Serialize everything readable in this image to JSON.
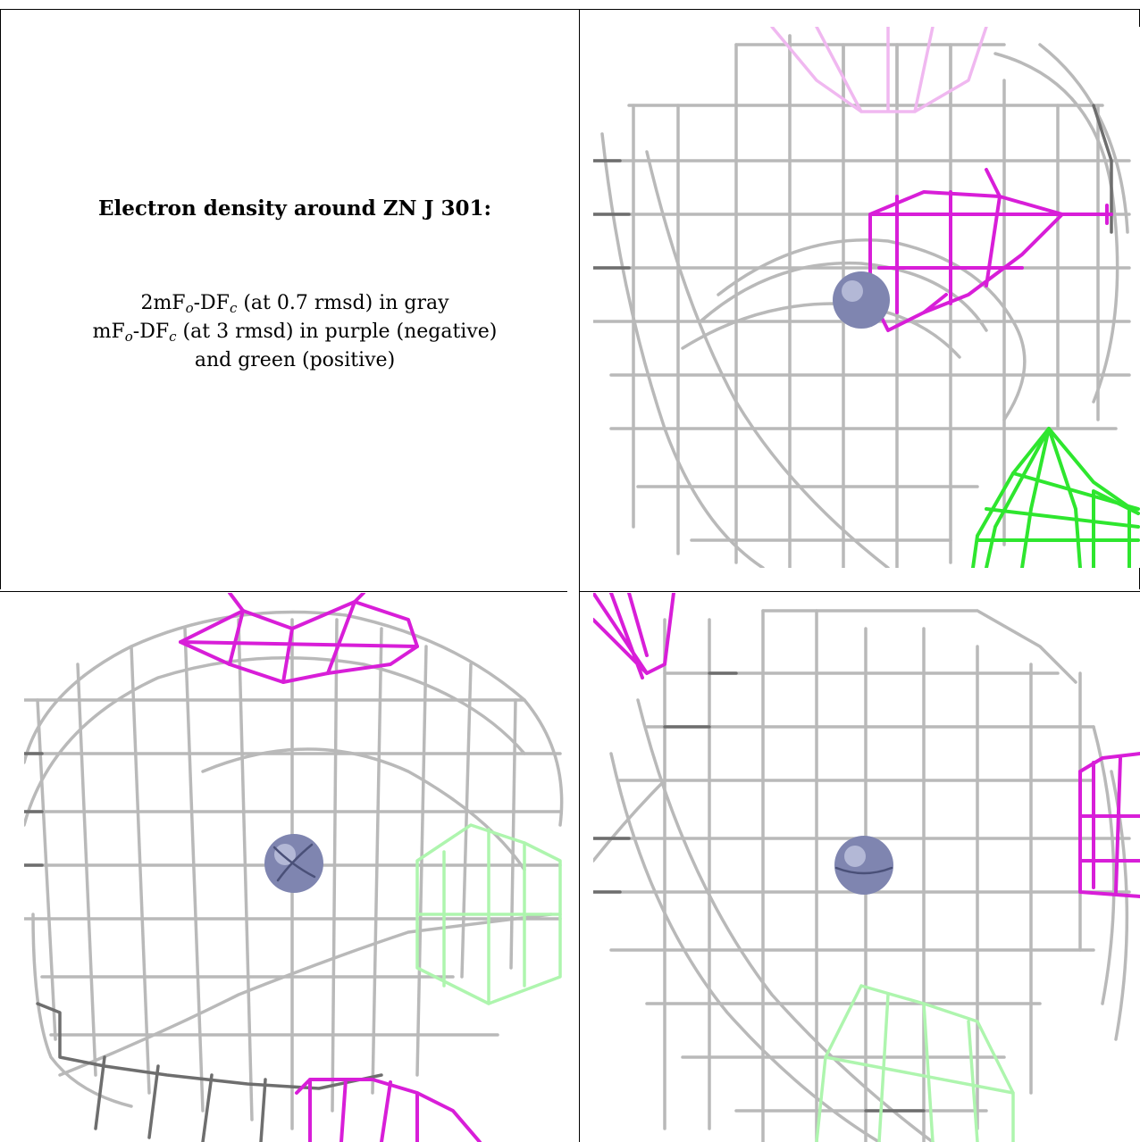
{
  "caption": {
    "title": "Electron density around ZN J 301:",
    "line1": {
      "pre": "2mF",
      "sub1": "o",
      "mid": "-DF",
      "sub2": "c",
      "post": " (at 0.7 rmsd) in gray"
    },
    "line2": {
      "pre": "mF",
      "sub1": "o",
      "mid": "-DF",
      "sub2": "c",
      "post": " (at 3 rmsd) in purple (negative)"
    },
    "line3": "and green (positive)"
  },
  "colors": {
    "gray_map": "#b9b9b9",
    "gray_map_dark": "#6e6e6e",
    "negative_map": "#d81ed8",
    "positive_map": "#2ee62e",
    "zinc_sphere": "#7f85b0"
  },
  "panels": [
    {
      "name": "top-right",
      "atom": "ZN"
    },
    {
      "name": "bottom-left",
      "atom": "ZN"
    },
    {
      "name": "bottom-right",
      "atom": "ZN"
    }
  ]
}
